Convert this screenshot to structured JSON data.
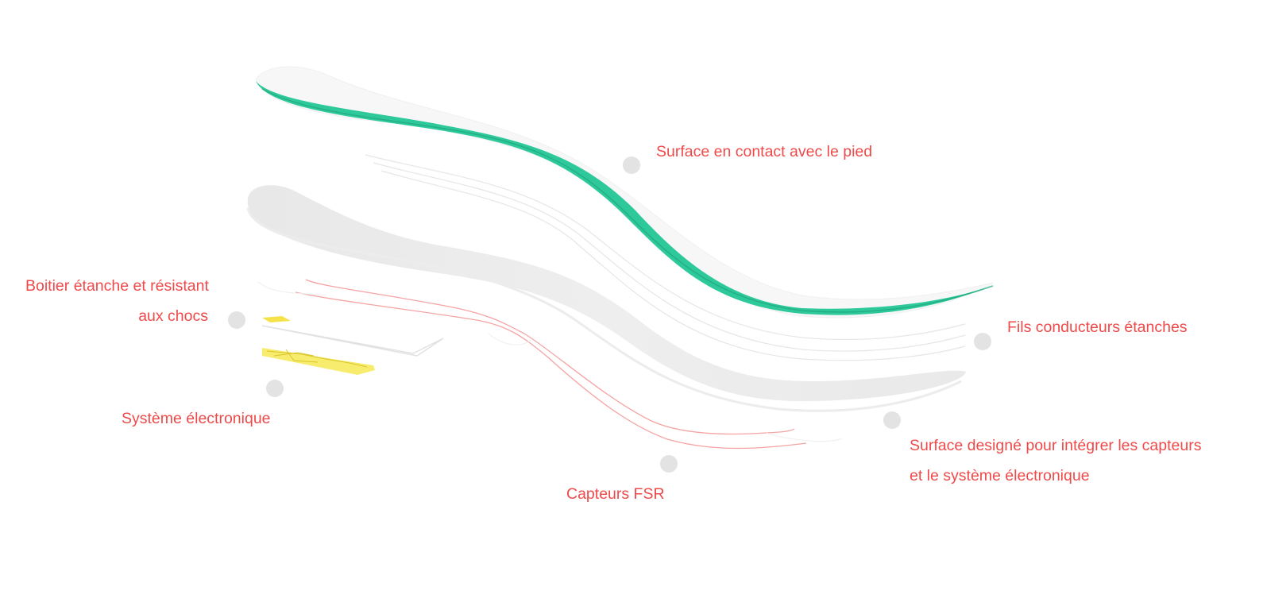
{
  "colors": {
    "accent": "#2ec99a",
    "label": "#ef4a4a",
    "sensor_line": "#f5a3a3",
    "electronics": "#f5e24a",
    "marker": "#e3e3e3",
    "layer_grey": "#efefef"
  },
  "labels": {
    "contact_surface": "Surface en contact avec le pied",
    "housing_line1": "Boitier étanche et résistant",
    "housing_line2": "aux chocs",
    "wires": "Fils conducteurs étanches",
    "electronics": "Système électronique",
    "integration_line1": "Surface designé pour intégrer les capteurs",
    "integration_line2": "et le système électronique",
    "sensors": "Capteurs FSR"
  }
}
